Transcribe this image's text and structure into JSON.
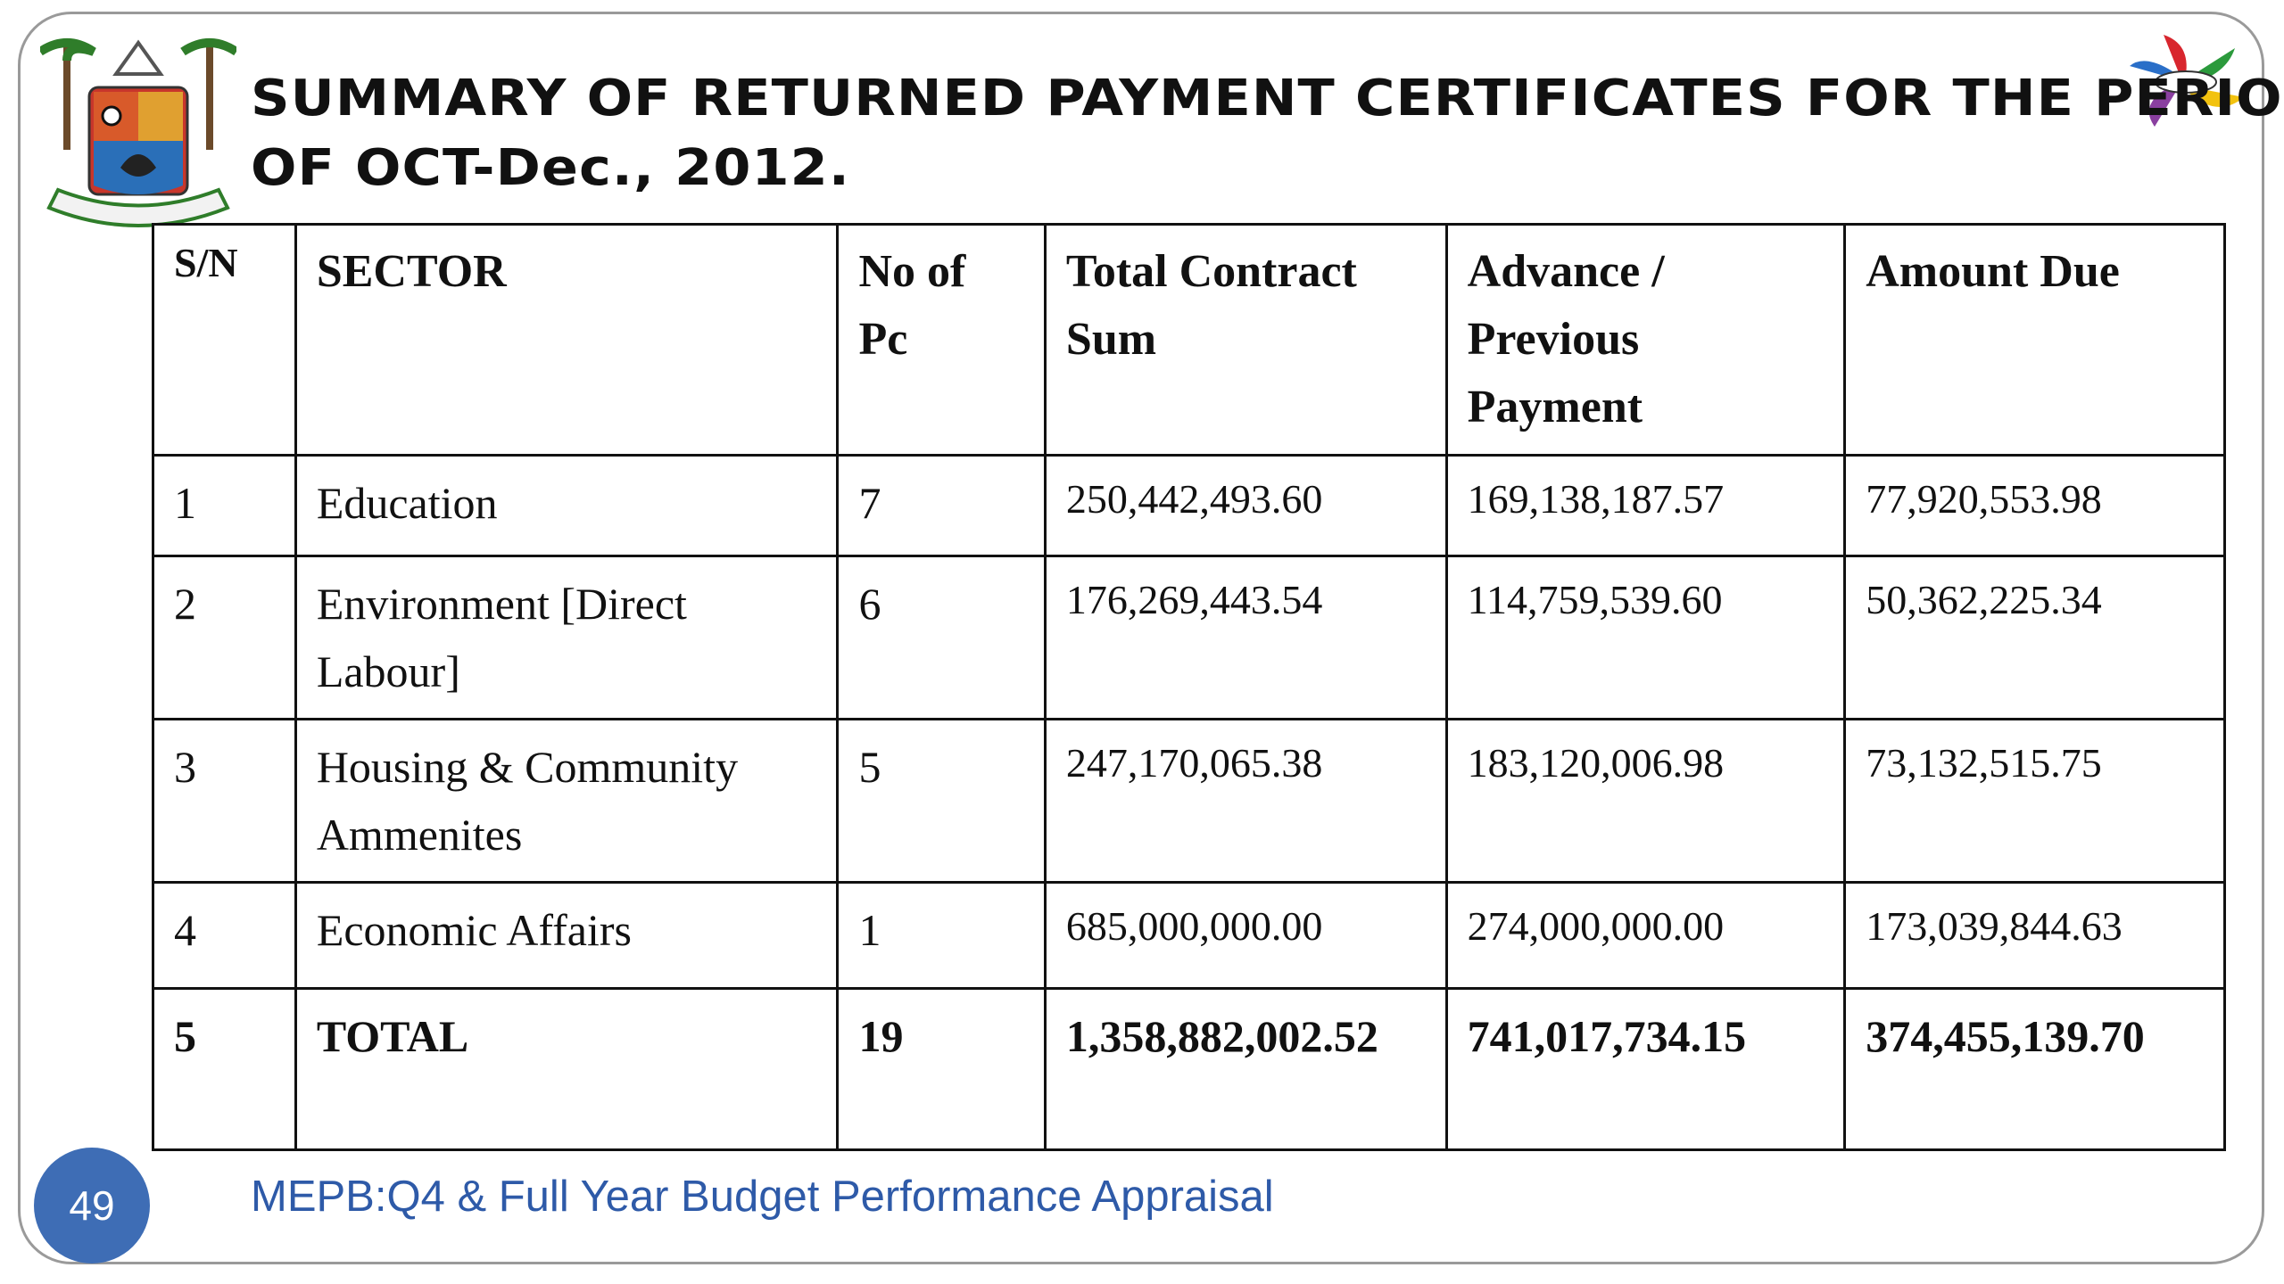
{
  "header": {
    "title": [
      "SUMMARY OF RETURNED PAYMENT CERTIFICATES FOR THE PERIOD",
      "OF OCT-Dec., 2012."
    ]
  },
  "table": {
    "columns": [
      "S/N",
      "SECTOR",
      "No of Pc",
      "Total Contract Sum",
      "Advance / Previous Payment",
      "Amount Due"
    ],
    "rows": [
      [
        "1",
        "Education",
        "7",
        "250,442,493.60",
        "169,138,187.57",
        "77,920,553.98"
      ],
      [
        "2",
        "Environment [Direct Labour]",
        "6",
        "176,269,443.54",
        "114,759,539.60",
        "50,362,225.34"
      ],
      [
        "3",
        "Housing & Community Ammenites",
        "5",
        "247,170,065.38",
        "183,120,006.98",
        "73,132,515.75"
      ],
      [
        "4",
        "Economic Affairs",
        "1",
        "685,000,000.00",
        "274,000,000.00",
        "173,039,844.63"
      ],
      [
        "5",
        "TOTAL",
        "19",
        "1,358,882,002.52",
        "741,017,734.15",
        "374,455,139.70"
      ]
    ]
  },
  "footer": {
    "page_number": "49",
    "text": "MEPB:Q4 & Full Year  Budget Performance Appraisal"
  }
}
